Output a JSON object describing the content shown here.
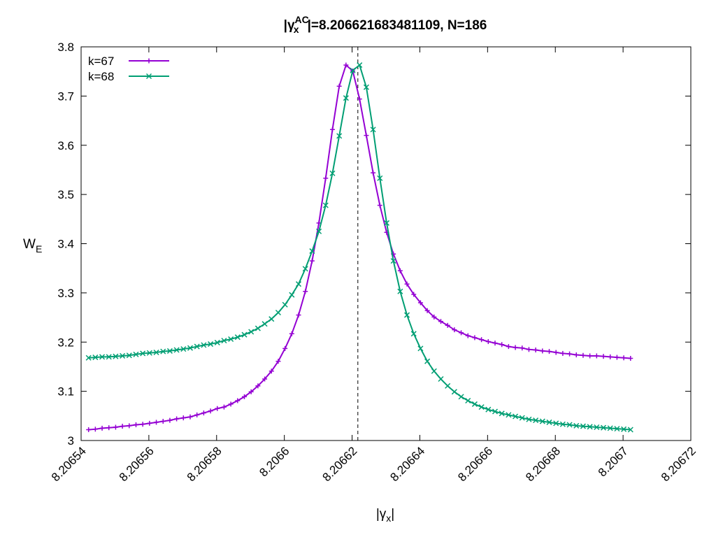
{
  "chart_data": {
    "type": "line",
    "title": {
      "prefix": "|",
      "symbol": "γ",
      "subscript": "x",
      "superscript": "AC",
      "suffix": "|=8.206621683481109, N=186"
    },
    "xlabel": {
      "prefix": "|",
      "symbol": "γ",
      "subscript": "x",
      "suffix": "|"
    },
    "ylabel": {
      "main": "W",
      "subscript": "E"
    },
    "xlim": [
      8.20654,
      8.20672
    ],
    "ylim": [
      3.0,
      3.8
    ],
    "xticks": [
      8.20654,
      8.20656,
      8.20658,
      8.2066,
      8.20662,
      8.20664,
      8.20666,
      8.20668,
      8.2067,
      8.20672
    ],
    "xtick_labels": [
      "8.20654",
      "8.20656",
      "8.20658",
      "8.2066",
      "8.20662",
      "8.20664",
      "8.20666",
      "8.20668",
      "8.2067",
      "8.20672"
    ],
    "yticks": [
      3.0,
      3.1,
      3.2,
      3.3,
      3.4,
      3.5,
      3.6,
      3.7,
      3.8
    ],
    "ytick_labels": [
      "3",
      "3.1",
      "3.2",
      "3.3",
      "3.4",
      "3.5",
      "3.6",
      "3.7",
      "3.8"
    ],
    "grid": false,
    "legend_position": "top-left",
    "vertical_line": {
      "x": 8.2066217,
      "style": "dashed",
      "color": "#000000"
    },
    "x": [
      8.2065422,
      8.2065442,
      8.2065462,
      8.2065482,
      8.2065502,
      8.2065522,
      8.2065542,
      8.2065562,
      8.2065582,
      8.2065602,
      8.2065622,
      8.2065642,
      8.2065662,
      8.2065682,
      8.2065702,
      8.2065722,
      8.2065742,
      8.2065762,
      8.2065782,
      8.2065802,
      8.2065822,
      8.2065842,
      8.2065862,
      8.2065882,
      8.2065902,
      8.2065922,
      8.2065942,
      8.2065962,
      8.2065982,
      8.2066002,
      8.2066022,
      8.2066042,
      8.2066062,
      8.2066082,
      8.2066102,
      8.2066122,
      8.2066142,
      8.2066162,
      8.2066182,
      8.2066202,
      8.2066222,
      8.2066242,
      8.2066262,
      8.2066282,
      8.2066302,
      8.2066322,
      8.2066342,
      8.2066362,
      8.2066382,
      8.2066402,
      8.2066422,
      8.2066442,
      8.2066462,
      8.2066482,
      8.2066502,
      8.2066522,
      8.2066542,
      8.2066562,
      8.2066582,
      8.2066602,
      8.2066622,
      8.2066642,
      8.2066662,
      8.2066682,
      8.2066702,
      8.2066722,
      8.2066742,
      8.2066762,
      8.2066782,
      8.2066802,
      8.2066822,
      8.2066842,
      8.2066862,
      8.2066882,
      8.2066902,
      8.2066922,
      8.2066942,
      8.2066962,
      8.2066982,
      8.2067002,
      8.2067022
    ],
    "series": [
      {
        "name": "k=67",
        "color": "#9400d3",
        "marker": "plus",
        "values": [
          3.022,
          3.023,
          3.025,
          3.026,
          3.027,
          3.029,
          3.03,
          3.032,
          3.033,
          3.035,
          3.037,
          3.039,
          3.041,
          3.044,
          3.046,
          3.048,
          3.052,
          3.056,
          3.06,
          3.065,
          3.068,
          3.074,
          3.081,
          3.089,
          3.099,
          3.111,
          3.125,
          3.141,
          3.161,
          3.187,
          3.217,
          3.255,
          3.303,
          3.365,
          3.442,
          3.533,
          3.632,
          3.72,
          3.763,
          3.751,
          3.694,
          3.62,
          3.544,
          3.478,
          3.423,
          3.379,
          3.345,
          3.318,
          3.297,
          3.28,
          3.264,
          3.251,
          3.242,
          3.234,
          3.225,
          3.219,
          3.213,
          3.209,
          3.205,
          3.201,
          3.198,
          3.195,
          3.191,
          3.189,
          3.188,
          3.185,
          3.184,
          3.182,
          3.181,
          3.179,
          3.177,
          3.176,
          3.174,
          3.173,
          3.172,
          3.172,
          3.171,
          3.17,
          3.169,
          3.168,
          3.167
        ]
      },
      {
        "name": "k=68",
        "color": "#009e73",
        "marker": "cross",
        "values": [
          3.168,
          3.169,
          3.17,
          3.17,
          3.171,
          3.172,
          3.173,
          3.175,
          3.177,
          3.178,
          3.179,
          3.181,
          3.182,
          3.184,
          3.186,
          3.188,
          3.191,
          3.194,
          3.196,
          3.199,
          3.203,
          3.206,
          3.21,
          3.215,
          3.221,
          3.228,
          3.237,
          3.247,
          3.26,
          3.276,
          3.296,
          3.318,
          3.349,
          3.385,
          3.425,
          3.478,
          3.543,
          3.619,
          3.696,
          3.752,
          3.763,
          3.718,
          3.632,
          3.533,
          3.442,
          3.365,
          3.303,
          3.255,
          3.217,
          3.187,
          3.161,
          3.141,
          3.125,
          3.111,
          3.099,
          3.089,
          3.081,
          3.074,
          3.068,
          3.063,
          3.059,
          3.055,
          3.052,
          3.049,
          3.046,
          3.043,
          3.041,
          3.039,
          3.037,
          3.035,
          3.033,
          3.032,
          3.03,
          3.029,
          3.028,
          3.027,
          3.026,
          3.025,
          3.024,
          3.023,
          3.022
        ]
      }
    ]
  }
}
